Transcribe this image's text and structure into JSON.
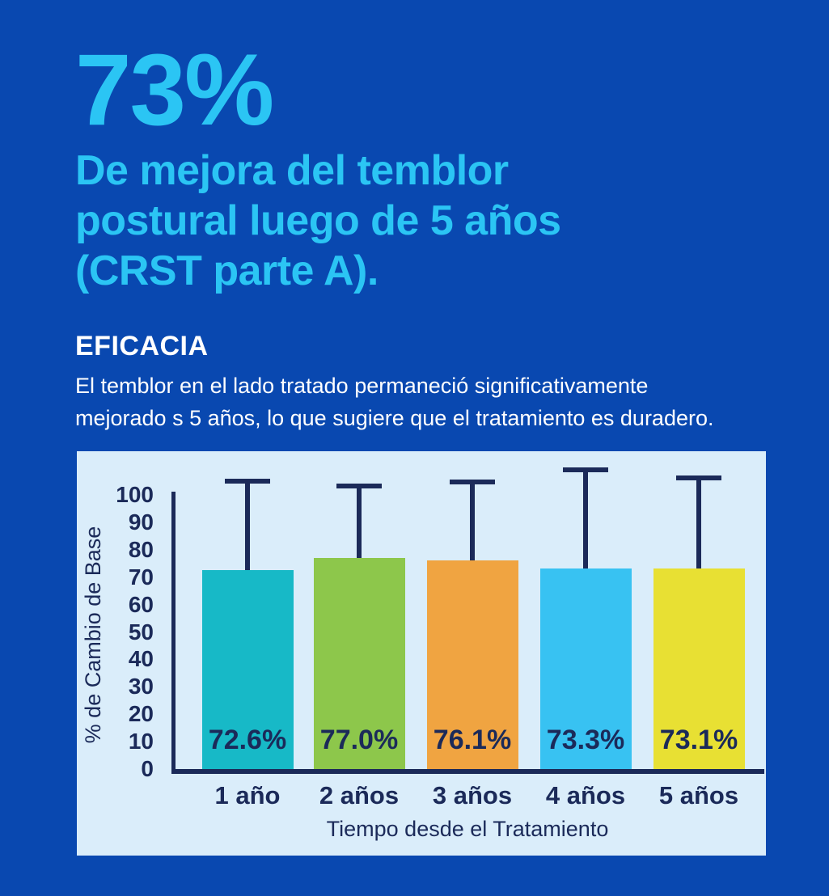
{
  "page": {
    "colors": {
      "background": "#0948B0",
      "accent": "#2BC5F4",
      "text_white": "#FFFFFF",
      "navy": "#1B2A59",
      "panel_background": "#DAEDFA"
    },
    "stat": "73%",
    "headline_lines": [
      "De mejora del temblor",
      "postural luego de 5 años",
      "(CRST parte A)."
    ],
    "section_title": "EFICACIA",
    "body_lines": [
      "El temblor en el lado tratado permaneció significativamente",
      "mejorado s 5 años, lo que sugiere que el tratamiento es duradero."
    ]
  },
  "chart_data": {
    "type": "bar",
    "title": "",
    "categories": [
      "1 año",
      "2 años",
      "3 años",
      "4 años",
      "5 años"
    ],
    "values": [
      72.6,
      77.0,
      76.1,
      73.3,
      73.1
    ],
    "bar_labels": [
      "72.6%",
      "77.0%",
      "76.1%",
      "73.3%",
      "73.1%"
    ],
    "error_bar_tops": [
      106,
      104,
      105.5,
      110,
      107
    ],
    "bar_colors": [
      "#17B9C7",
      "#8DC74B",
      "#F0A441",
      "#38C2F2",
      "#E8E033"
    ],
    "xlabel": "Tiempo desde el Tratamiento",
    "ylabel": "% de Cambio de Base",
    "y_ticks": [
      0,
      10,
      20,
      30,
      40,
      50,
      60,
      70,
      80,
      90,
      100
    ],
    "ylim": [
      0,
      100
    ],
    "grid": false,
    "legend": "none",
    "error_bars": "upper only, navy with T-caps"
  }
}
